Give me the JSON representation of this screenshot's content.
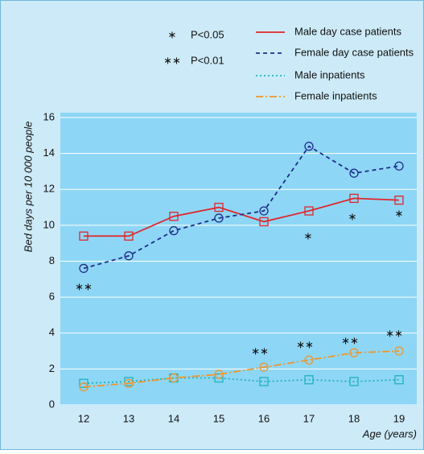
{
  "chart_data": {
    "type": "line",
    "y_label": "Bed days per 10 000 people",
    "x_label": "Age (years)",
    "categories": [
      "12",
      "13",
      "14",
      "15",
      "16",
      "17",
      "18",
      "19"
    ],
    "ylim": [
      0,
      16
    ],
    "yticks": [
      0,
      2,
      4,
      6,
      8,
      10,
      12,
      14,
      16
    ],
    "grid": true,
    "series": [
      {
        "name": "Male day case patients",
        "color": "#e0262b",
        "dash": "none",
        "marker": "square",
        "values": [
          9.4,
          9.4,
          10.5,
          11.0,
          10.2,
          10.8,
          11.5,
          11.4
        ]
      },
      {
        "name": "Female day case patients",
        "color": "#1f2e8c",
        "dash": "5,4",
        "marker": "circle",
        "values": [
          7.6,
          8.3,
          9.7,
          10.4,
          10.8,
          14.4,
          12.9,
          13.3
        ]
      },
      {
        "name": "Male inpatients",
        "color": "#1fb2c0",
        "dash": "2,3",
        "marker": "square",
        "values": [
          1.2,
          1.3,
          1.5,
          1.5,
          1.3,
          1.4,
          1.3,
          1.4
        ]
      },
      {
        "name": "Female inpatients",
        "color": "#f0962a",
        "dash": "9,3,2,3",
        "marker": "circle",
        "values": [
          1.0,
          1.2,
          1.5,
          1.7,
          2.1,
          2.5,
          2.9,
          3.0
        ]
      }
    ],
    "significance_key": [
      {
        "symbol": "∗",
        "label": "P<0.05"
      },
      {
        "symbol": "∗∗",
        "label": "P<0.01"
      }
    ],
    "annotations": [
      "∗∗",
      "∗∗",
      "∗∗",
      "∗",
      "∗∗",
      "∗",
      "∗∗",
      "∗"
    ]
  }
}
